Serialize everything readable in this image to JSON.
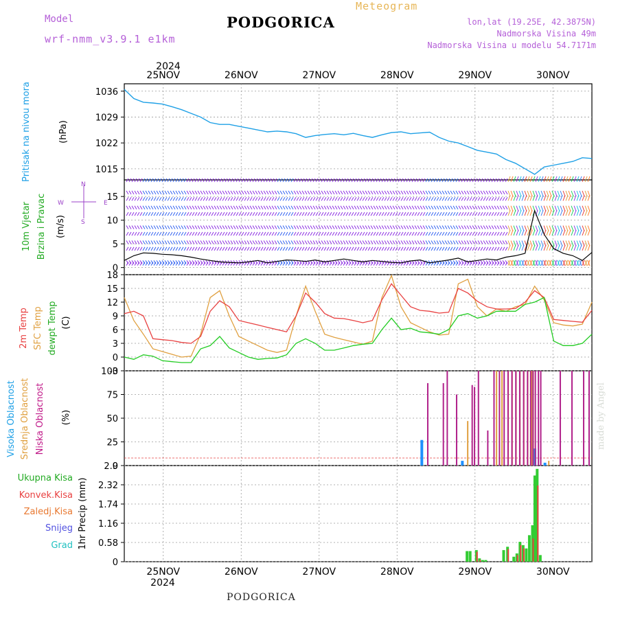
{
  "header": {
    "model_label": "Model",
    "model_name": "wrf-nmm_v3.9.1 e1km",
    "city": "PODGORICA",
    "meteogram": "Meteogram",
    "lonlat": "lon,lat (19.25E, 42.3875N)",
    "elevation": "Nadmorska Visina 49m",
    "model_elevation": "Nadmorska Visina u modelu 54.7171m"
  },
  "footer": {
    "city": "PODGORICA",
    "credit": "made by Angel"
  },
  "colors": {
    "pressure": "#1ea0e6",
    "temp2m": "#e84040",
    "sfc": "#e0a040",
    "dewpt": "#22cc22",
    "wind": "#8a2be2",
    "cloud_high": "#1e90ff",
    "cloud_mid": "#e0a040",
    "cloud_low": "#b0208a",
    "precip_total": "#33cc33",
    "precip_conv": "#e84040"
  },
  "chart_data": [
    {
      "type": "line",
      "panel": "pressure",
      "ylabel_lines": [
        "Pritisak na nivou mora",
        "(hPa)"
      ],
      "ylim": [
        1012,
        1038
      ],
      "yticks": [
        1015,
        1022,
        1029,
        1036
      ],
      "x_top": {
        "year": "2024",
        "days": [
          "25NOV",
          "26NOV",
          "27NOV",
          "28NOV",
          "29NOV",
          "30NOV"
        ]
      },
      "series": [
        {
          "values": [
            1036.5,
            1034,
            1033,
            1032.8,
            1032.5,
            1031.8,
            1031,
            1030,
            1029,
            1027.5,
            1027,
            1027,
            1026.5,
            1026,
            1025.5,
            1025,
            1025.2,
            1025,
            1024.5,
            1023.5,
            1024,
            1024.3,
            1024.5,
            1024.2,
            1024.6,
            1024,
            1023.5,
            1024.2,
            1024.8,
            1025,
            1024.5,
            1024.7,
            1024.9,
            1023.5,
            1022.5,
            1022,
            1021,
            1020,
            1019.5,
            1019,
            1017.5,
            1016.5,
            1015,
            1013.5,
            1015.5,
            1016,
            1016.5,
            1017,
            1018,
            1017.8
          ]
        }
      ]
    },
    {
      "type": "line",
      "panel": "wind",
      "ylabel_lines": [
        "10m Vjetar",
        "Brzina i Pravac",
        "(m/s)"
      ],
      "ylim": [
        -1.5,
        18.5
      ],
      "yticks": [
        0,
        5,
        10,
        15
      ],
      "compass": {
        "n": "N",
        "w": "W",
        "e": "E",
        "s": "S"
      },
      "series": [
        {
          "name": "speed",
          "values": [
            1.5,
            2.5,
            3.1,
            3,
            2.8,
            2.7,
            2.5,
            2.2,
            1.8,
            1.5,
            1.2,
            1.1,
            1,
            1.2,
            1.5,
            1,
            1.3,
            1.6,
            1.5,
            1.3,
            1.6,
            1.2,
            1.5,
            1.8,
            1.5,
            1.2,
            1.5,
            1.3,
            1.1,
            1,
            1.4,
            1.6,
            1,
            1.3,
            1.6,
            2,
            1.2,
            1.5,
            1.8,
            1.6,
            2.2,
            2.5,
            3,
            12,
            7,
            4,
            3,
            2.5,
            1.5,
            3.2
          ]
        }
      ]
    },
    {
      "type": "line",
      "panel": "temperature",
      "ylabel_lines": [
        "2m Temp",
        "SFC Temp",
        "dewpt Temp",
        "(C)"
      ],
      "ylim": [
        -3,
        18
      ],
      "yticks": [
        -3,
        0,
        3,
        6,
        9,
        12,
        15,
        18
      ],
      "series": [
        {
          "name": "2m Temp",
          "values": [
            9.5,
            10,
            9,
            4,
            3.8,
            3.6,
            3.2,
            3,
            4.5,
            10,
            12.3,
            11,
            8,
            7.5,
            7,
            6.5,
            6,
            5.5,
            9,
            14,
            12,
            9.5,
            8.5,
            8.4,
            8,
            7.5,
            8,
            12.5,
            16,
            13.5,
            11,
            10.2,
            10,
            9.6,
            9.8,
            15,
            14,
            12.2,
            11,
            10.5,
            10.5,
            10.6,
            12,
            14.5,
            13,
            8.2,
            8,
            7.8,
            7.6,
            10.2
          ]
        },
        {
          "name": "SFC Temp",
          "values": [
            13,
            8,
            5,
            1.8,
            1.2,
            0.6,
            0,
            0.2,
            5,
            13,
            14.5,
            9,
            4.5,
            3.5,
            2.5,
            1.5,
            1,
            1.5,
            9,
            15.5,
            10,
            5,
            4.3,
            3.8,
            3.3,
            2.8,
            3.5,
            13,
            17.8,
            11,
            7.5,
            6.5,
            5.5,
            4.8,
            5,
            16,
            17,
            11,
            9,
            10.5,
            10,
            11,
            11.5,
            15.5,
            12.5,
            7.5,
            7,
            6.8,
            7.2,
            12
          ]
        },
        {
          "name": "dewpt Temp",
          "values": [
            0,
            -0.5,
            0.5,
            0.2,
            -0.8,
            -1,
            -1.2,
            -1.2,
            1.8,
            2.5,
            4.5,
            2,
            1,
            0,
            -0.5,
            -0.3,
            -0.2,
            0.5,
            3,
            4,
            3,
            1.5,
            1.5,
            2,
            2.5,
            2.8,
            3,
            6,
            8.5,
            6,
            6.3,
            5.5,
            5.3,
            5,
            6,
            9,
            9.5,
            8.5,
            9,
            10,
            10,
            10,
            11.5,
            12,
            13,
            3.5,
            2.5,
            2.5,
            3,
            5
          ]
        }
      ]
    },
    {
      "type": "bar",
      "panel": "clouds",
      "ylabel_lines": [
        "Visoka Oblacnost",
        "Srednja Oblacnost",
        "Niska Oblacnost",
        "(%)"
      ],
      "ylim": [
        0,
        100
      ],
      "yticks": [
        0,
        25,
        50,
        75,
        100
      ],
      "series": [
        {
          "name": "Visoka Oblacnost",
          "x": [
            28.3,
            28.82,
            29.75,
            29.88
          ],
          "values": [
            27,
            5,
            18,
            3
          ]
        },
        {
          "name": "Srednja Oblacnost",
          "x": [
            28.88,
            29.25,
            29.32,
            29.4,
            29.45,
            29.5,
            29.55,
            29.6,
            29.65,
            29.7,
            29.72,
            29.92
          ],
          "values": [
            47,
            100,
            100,
            100,
            100,
            100,
            100,
            100,
            100,
            100,
            100,
            5
          ]
        },
        {
          "name": "Niska Oblacnost",
          "x": [
            28.35,
            28.55,
            28.6,
            28.72,
            28.92,
            28.95,
            29.0,
            29.12,
            29.2,
            29.27,
            29.33,
            29.38,
            29.43,
            29.48,
            29.53,
            29.58,
            29.63,
            29.67,
            29.7,
            29.73,
            29.77,
            29.8,
            30.05,
            30.2,
            30.35,
            30.42
          ],
          "values": [
            87,
            87,
            100,
            75,
            85,
            83,
            100,
            37,
            100,
            100,
            100,
            100,
            100,
            100,
            100,
            100,
            100,
            100,
            100,
            100,
            100,
            100,
            100,
            100,
            100,
            100
          ]
        }
      ]
    },
    {
      "type": "bar",
      "panel": "precip",
      "ylabel_lines": [
        "1hr Precip (mm)"
      ],
      "legend": [
        "Ukupna Kisa",
        "Konvek.Kisa",
        "Zaledj.Kisa",
        "Snijeg",
        "Grad"
      ],
      "ylim": [
        0,
        2.9
      ],
      "yticks": [
        0,
        0.58,
        1.16,
        1.74,
        2.32,
        2.9
      ],
      "x_bottom": {
        "year": "2024",
        "days": [
          "25NOV",
          "26NOV",
          "27NOV",
          "28NOV",
          "29NOV",
          "30NOV"
        ]
      },
      "series": [
        {
          "name": "Ukupna Kisa",
          "x": [
            28.88,
            28.92,
            29.0,
            29.04,
            29.08,
            29.12,
            29.35,
            29.4,
            29.48,
            29.52,
            29.56,
            29.6,
            29.64,
            29.68,
            29.72,
            29.75,
            29.78,
            29.82
          ],
          "values": [
            0.32,
            0.32,
            0.35,
            0.1,
            0.05,
            0.05,
            0.35,
            0.45,
            0.15,
            0.25,
            0.6,
            0.5,
            0.4,
            0.8,
            1.1,
            2.6,
            2.8,
            0.2
          ]
        },
        {
          "name": "Konvek.Kisa",
          "x": [
            29.0,
            29.04,
            29.4,
            29.52,
            29.56,
            29.6,
            29.72,
            29.78
          ],
          "values": [
            0.3,
            0.05,
            0.38,
            0.2,
            0.5,
            0.4,
            0.7,
            2.3
          ]
        }
      ]
    }
  ]
}
